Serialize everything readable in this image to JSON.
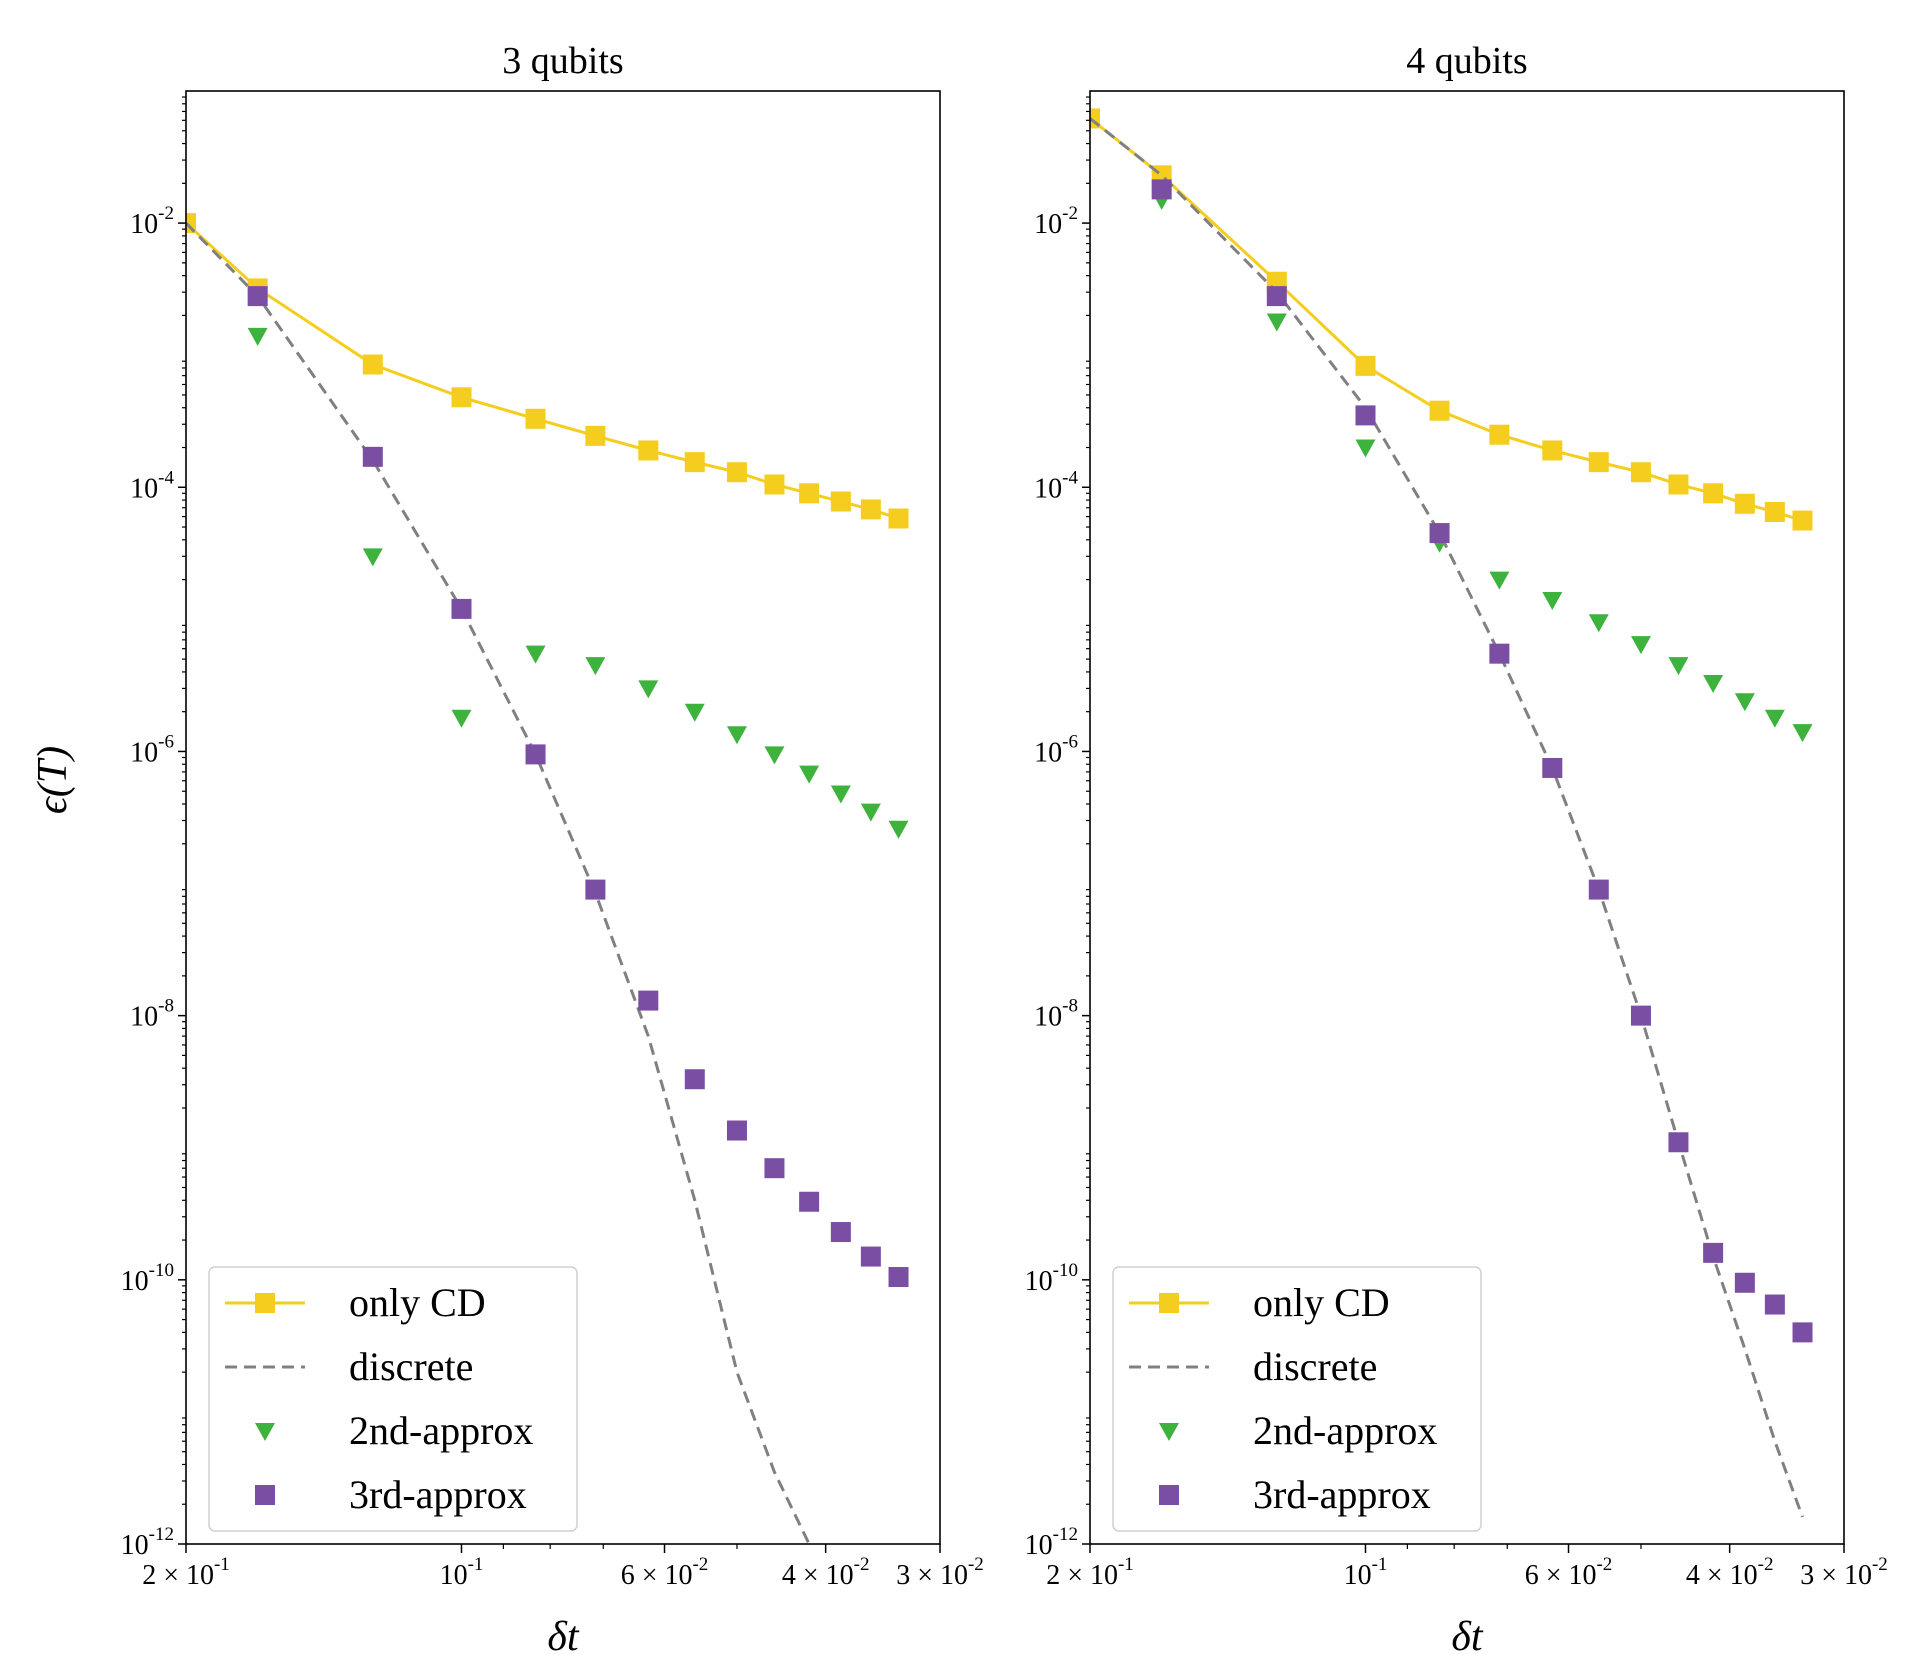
{
  "chart_data": [
    {
      "type": "line",
      "title": "3 qubits",
      "xlabel": "δt",
      "ylabel": "ϵ(T)",
      "xscale": "log",
      "yscale": "log",
      "xlim": [
        0.2,
        0.03
      ],
      "ylim": [
        1e-12,
        0.1
      ],
      "x_tick_labels": [
        {
          "value": 0.2,
          "mant": "2 × 10",
          "exp": "-1"
        },
        {
          "value": 0.1,
          "mant": "10",
          "exp": "-1"
        },
        {
          "value": 0.06,
          "mant": "6 × 10",
          "exp": "-2"
        },
        {
          "value": 0.04,
          "mant": "4 × 10",
          "exp": "-2"
        },
        {
          "value": 0.03,
          "mant": "3 × 10",
          "exp": "-2"
        }
      ],
      "y_tick_labels": [
        {
          "value": 0.01,
          "mant": "10",
          "exp": "-2"
        },
        {
          "value": 0.0001,
          "mant": "10",
          "exp": "-4"
        },
        {
          "value": 1e-06,
          "mant": "10",
          "exp": "-6"
        },
        {
          "value": 1e-08,
          "mant": "10",
          "exp": "-8"
        },
        {
          "value": 1e-10,
          "mant": "10",
          "exp": "-10"
        },
        {
          "value": 1e-12,
          "mant": "10",
          "exp": "-12"
        }
      ],
      "legend": {
        "position": "lower-left",
        "entries": [
          "only CD",
          "discrete",
          "2nd-approx",
          "3rd-approx"
        ]
      },
      "series": [
        {
          "name": "only CD",
          "style": "line-square",
          "color": "#f5cd1e",
          "x": [
            0.2,
            0.167,
            0.125,
            0.1,
            0.083,
            0.0714,
            0.0625,
            0.0556,
            0.05,
            0.0455,
            0.0417,
            0.0385,
            0.0357,
            0.0333
          ],
          "y": [
            0.01,
            0.0032,
            0.00085,
            0.00048,
            0.00033,
            0.000245,
            0.00019,
            0.000155,
            0.00013,
            0.000105,
            9e-05,
            7.8e-05,
            6.8e-05,
            5.8e-05
          ]
        },
        {
          "name": "discrete",
          "style": "dashed",
          "color": "#808080",
          "x": [
            0.2,
            0.167,
            0.125,
            0.1,
            0.083,
            0.0714,
            0.0625,
            0.0556,
            0.05,
            0.0455,
            0.0417
          ],
          "y": [
            0.01,
            0.0028,
            0.00016,
            1.2e-05,
            9.5e-07,
            8.5e-08,
            7e-09,
            4e-10,
            2e-11,
            3.5e-12,
            1e-12
          ]
        },
        {
          "name": "2nd-approx",
          "style": "marker-triangle",
          "color": "#3db33d",
          "x": [
            0.167,
            0.125,
            0.1,
            0.083,
            0.0714,
            0.0625,
            0.0556,
            0.05,
            0.0455,
            0.0417,
            0.0385,
            0.0357,
            0.0333
          ],
          "y": [
            0.0014,
            3e-05,
            1.8e-06,
            5.5e-06,
            4.5e-06,
            3e-06,
            2e-06,
            1.35e-06,
            9.5e-07,
            6.8e-07,
            4.8e-07,
            3.5e-07,
            2.6e-07
          ]
        },
        {
          "name": "3rd-approx",
          "style": "marker-square",
          "color": "#7a4fa3",
          "x": [
            0.167,
            0.125,
            0.1,
            0.083,
            0.0714,
            0.0625,
            0.0556,
            0.05,
            0.0455,
            0.0417,
            0.0385,
            0.0357,
            0.0333
          ],
          "y": [
            0.0028,
            0.00017,
            1.2e-05,
            9.5e-07,
            9e-08,
            1.3e-08,
            3.3e-09,
            1.35e-09,
            7e-10,
            3.9e-10,
            2.3e-10,
            1.5e-10,
            1.05e-10
          ]
        }
      ]
    },
    {
      "type": "line",
      "title": "4 qubits",
      "xlabel": "δt",
      "ylabel": "",
      "xscale": "log",
      "yscale": "log",
      "xlim": [
        0.2,
        0.03
      ],
      "ylim": [
        1e-12,
        0.1
      ],
      "x_tick_labels": [
        {
          "value": 0.2,
          "mant": "2 × 10",
          "exp": "-1"
        },
        {
          "value": 0.1,
          "mant": "10",
          "exp": "-1"
        },
        {
          "value": 0.06,
          "mant": "6 × 10",
          "exp": "-2"
        },
        {
          "value": 0.04,
          "mant": "4 × 10",
          "exp": "-2"
        },
        {
          "value": 0.03,
          "mant": "3 × 10",
          "exp": "-2"
        }
      ],
      "y_tick_labels": [
        {
          "value": 0.01,
          "mant": "10",
          "exp": "-2"
        },
        {
          "value": 0.0001,
          "mant": "10",
          "exp": "-4"
        },
        {
          "value": 1e-06,
          "mant": "10",
          "exp": "-6"
        },
        {
          "value": 1e-08,
          "mant": "10",
          "exp": "-8"
        },
        {
          "value": 1e-10,
          "mant": "10",
          "exp": "-10"
        },
        {
          "value": 1e-12,
          "mant": "10",
          "exp": "-12"
        }
      ],
      "legend": {
        "position": "lower-left",
        "entries": [
          "only CD",
          "discrete",
          "2nd-approx",
          "3rd-approx"
        ]
      },
      "series": [
        {
          "name": "only CD",
          "style": "line-square",
          "color": "#f5cd1e",
          "x": [
            0.2,
            0.167,
            0.125,
            0.1,
            0.083,
            0.0714,
            0.0625,
            0.0556,
            0.05,
            0.0455,
            0.0417,
            0.0385,
            0.0357,
            0.0333
          ],
          "y": [
            0.062,
            0.023,
            0.0036,
            0.00083,
            0.00038,
            0.00025,
            0.00019,
            0.000155,
            0.00013,
            0.000105,
            9e-05,
            7.5e-05,
            6.5e-05,
            5.6e-05
          ]
        },
        {
          "name": "discrete",
          "style": "dashed",
          "color": "#808080",
          "x": [
            0.2,
            0.167,
            0.125,
            0.1,
            0.083,
            0.0714,
            0.0625,
            0.0556,
            0.05,
            0.0455,
            0.0417,
            0.0385,
            0.0357,
            0.0333
          ],
          "y": [
            0.062,
            0.023,
            0.003,
            0.0004,
            4.5e-05,
            5.5e-06,
            7.5e-07,
            9e-08,
            1e-08,
            1.1e-09,
            1.5e-10,
            3e-11,
            6e-12,
            1.6e-12
          ]
        },
        {
          "name": "2nd-approx",
          "style": "marker-triangle",
          "color": "#3db33d",
          "x": [
            0.167,
            0.125,
            0.1,
            0.083,
            0.0714,
            0.0625,
            0.0556,
            0.05,
            0.0455,
            0.0417,
            0.0385,
            0.0357,
            0.0333
          ],
          "y": [
            0.015,
            0.0018,
            0.0002,
            3.8e-05,
            2e-05,
            1.4e-05,
            9.5e-06,
            6.5e-06,
            4.5e-06,
            3.3e-06,
            2.4e-06,
            1.8e-06,
            1.4e-06
          ]
        },
        {
          "name": "3rd-approx",
          "style": "marker-square",
          "color": "#7a4fa3",
          "x": [
            0.167,
            0.125,
            0.1,
            0.083,
            0.0714,
            0.0625,
            0.0556,
            0.05,
            0.0455,
            0.0417,
            0.0385,
            0.0357,
            0.0333
          ],
          "y": [
            0.018,
            0.0028,
            0.00035,
            4.5e-05,
            5.5e-06,
            7.5e-07,
            9e-08,
            1e-08,
            1.1e-09,
            1.6e-10,
            9.5e-11,
            6.5e-11,
            4e-11
          ]
        }
      ]
    }
  ]
}
